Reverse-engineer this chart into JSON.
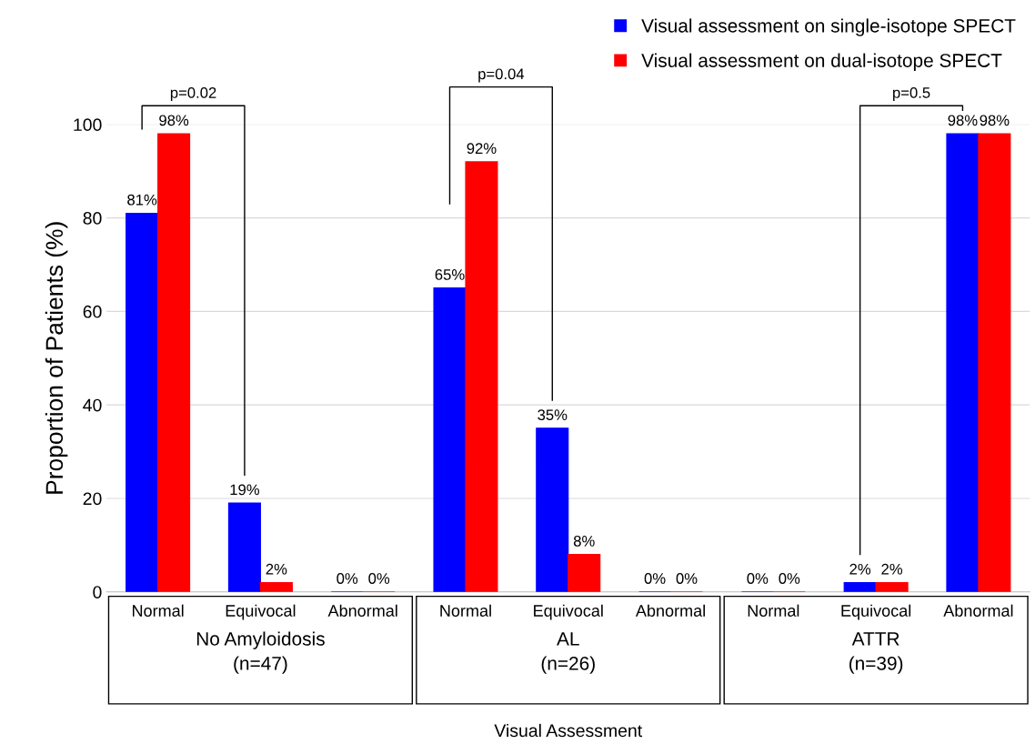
{
  "chart_data": {
    "type": "bar",
    "categories": [
      "Normal",
      "Equivocal",
      "Abnormal",
      "Normal",
      "Equivocal",
      "Abnormal",
      "Normal",
      "Equivocal",
      "Abnormal"
    ],
    "series": [
      {
        "name": "Visual assessment on single-isotope SPECT",
        "color": "#0000ff",
        "values": [
          81,
          19,
          0,
          65,
          35,
          0,
          0,
          2,
          98
        ],
        "value_labels": [
          "81%",
          "19%",
          "0%",
          "65%",
          "35%",
          "0%",
          "0%",
          "2%",
          "98%"
        ]
      },
      {
        "name": "Visual assessment on dual-isotope SPECT",
        "color": "#ff0000",
        "values": [
          98,
          2,
          0,
          92,
          8,
          0,
          0,
          2,
          98
        ],
        "value_labels": [
          "98%",
          "2%",
          "0%",
          "92%",
          "8%",
          "0%",
          "0%",
          "2%",
          "98%"
        ]
      }
    ],
    "ylabel": "Proportion of Patients (%)",
    "ylim": [
      0,
      100
    ],
    "yticks": [
      0,
      20,
      40,
      60,
      80,
      100
    ],
    "grid": "y",
    "legend": "top right",
    "annotations": [
      "p=0.02",
      "p=0.04",
      "p=0.5",
      "No Amyloidosis\n(n=47)",
      "AL\n(n=26)",
      "ATTR\n(n=39)",
      "Visual Assessment"
    ]
  }
}
